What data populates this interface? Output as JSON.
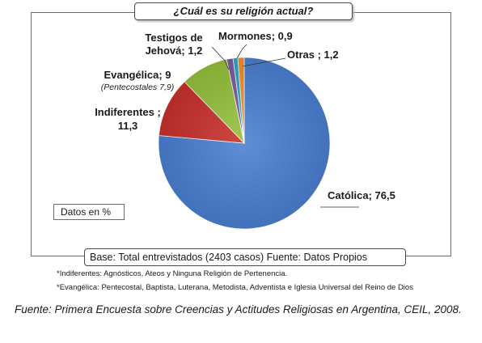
{
  "chart_data": {
    "type": "pie",
    "title": "¿Cuál es su religión actual?",
    "unit_label": "Datos en  %",
    "base_note": "Base: Total entrevistados (2403 casos) Fuente: Datos Propios",
    "slices": [
      {
        "name": "Católica",
        "value": 76.5,
        "label": "Católica; 76,5",
        "color": "#4a7fd0"
      },
      {
        "name": "Indiferentes",
        "value": 11.3,
        "label_lines": [
          "Indiferentes ;",
          "11,3"
        ],
        "color": "#c8302c"
      },
      {
        "name": "Evangélica",
        "value": 9,
        "label": "Evangélica; 9",
        "sublabel": "(Pentecostales 7,9)",
        "color": "#94c13c"
      },
      {
        "name": "Testigos de Jehová",
        "value": 1.2,
        "label_lines": [
          "Testigos de",
          "Jehová; 1,2"
        ],
        "color": "#7a5a9e"
      },
      {
        "name": "Mormones",
        "value": 0.9,
        "label": "Mormones; 0,9",
        "color": "#2aa7c6"
      },
      {
        "name": "Otras",
        "value": 1.2,
        "label": "Otras ; 1,2",
        "color": "#f0902c"
      }
    ]
  },
  "footnotes": {
    "indiferentes": "*Indiferentes: Agnósticos, Ateos y Ninguna Religión de Pertenencia.",
    "evangelica": "*Evangélica: Pentecostal, Baptista, Luterana, Metodista, Adventista e Iglesia Universal del Reino de Dios"
  },
  "caption": "Fuente: Primera Encuesta sobre Creencias y Actitudes Religiosas en Argentina, CEIL, 2008."
}
